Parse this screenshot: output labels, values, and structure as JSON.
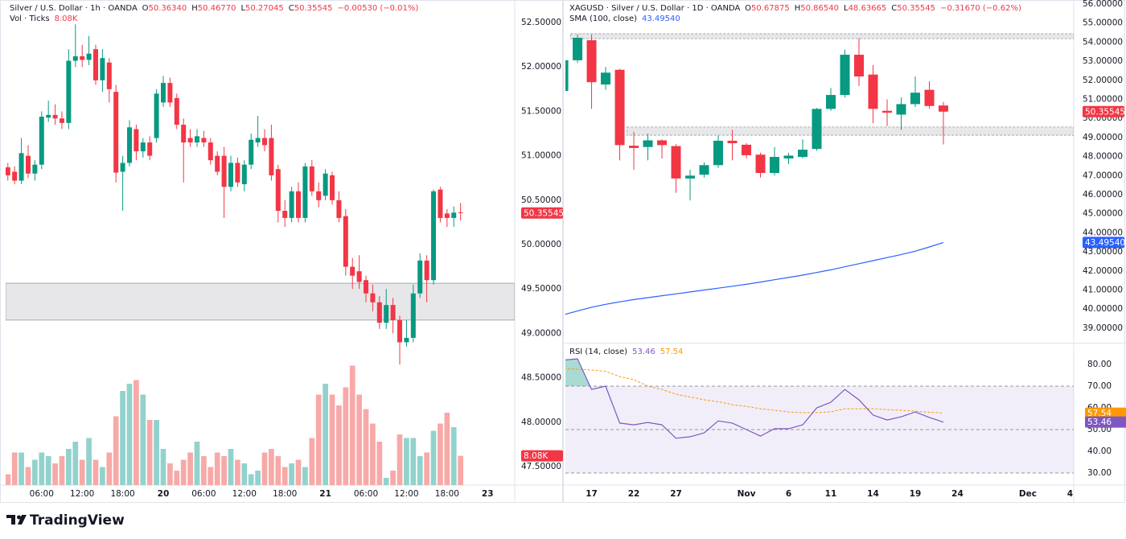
{
  "chart_data": [
    {
      "type": "candlestick",
      "header": {
        "symbol": "Silver / U.S. Dollar · 1h · OANDA",
        "fields": [
          {
            "key": "O",
            "value": "50.36340"
          },
          {
            "key": "H",
            "value": "50.46770"
          },
          {
            "key": "L",
            "value": "50.27045"
          },
          {
            "key": "C",
            "value": "50.35545"
          }
        ],
        "change": "−0.00530 (−0.01%)"
      },
      "up_color": "#089981",
      "down_color": "#f23645",
      "x": [
        -23,
        -22,
        -21,
        -20,
        -19,
        -18,
        -17,
        -16,
        -15,
        -14,
        -13,
        -12,
        -11,
        -10,
        -9,
        -8,
        -7,
        -6,
        -5,
        -4,
        -3,
        -2,
        -1,
        0,
        1,
        2,
        3,
        4,
        5,
        6,
        7,
        8,
        9,
        10,
        11,
        12,
        13,
        14,
        15,
        16,
        17,
        18,
        19,
        20,
        21,
        22,
        23,
        24,
        25,
        26,
        27,
        28,
        29,
        30,
        31,
        32,
        33,
        34,
        35,
        36,
        37,
        38,
        39,
        40,
        41,
        42,
        43,
        44
      ],
      "open": [
        50.87,
        50.82,
        50.72,
        51.0,
        50.8,
        50.9,
        51.43,
        51.46,
        51.42,
        51.37,
        52.07,
        52.12,
        52.08,
        52.2,
        51.85,
        52.05,
        51.72,
        50.82,
        50.92,
        51.3,
        51.05,
        51.15,
        51.2,
        51.6,
        51.82,
        51.65,
        51.35,
        51.2,
        51.15,
        51.2,
        51.15,
        51.0,
        51.0,
        50.65,
        50.92,
        50.68,
        50.9,
        51.15,
        51.2,
        51.2,
        50.85,
        50.38,
        50.3,
        50.6,
        50.3,
        50.88,
        50.6,
        50.55,
        50.78,
        50.5,
        50.32,
        49.75,
        49.7,
        49.6,
        49.45,
        49.35,
        49.12,
        49.32,
        49.15,
        48.9,
        48.95,
        49.45,
        49.82,
        49.6,
        50.62,
        50.35,
        50.3,
        50.3634
      ],
      "high": [
        50.92,
        50.88,
        51.2,
        51.12,
        50.95,
        51.5,
        51.62,
        51.58,
        51.5,
        52.2,
        52.48,
        52.25,
        52.35,
        52.25,
        52.2,
        52.1,
        51.8,
        51.0,
        51.4,
        51.35,
        51.2,
        51.22,
        51.75,
        51.9,
        51.88,
        51.7,
        51.42,
        51.3,
        51.3,
        51.28,
        51.2,
        51.05,
        51.1,
        51.0,
        50.98,
        50.95,
        51.25,
        51.45,
        51.3,
        51.35,
        50.9,
        50.5,
        50.65,
        50.7,
        50.92,
        50.95,
        50.7,
        50.85,
        50.82,
        50.6,
        50.4,
        49.85,
        49.88,
        49.65,
        49.55,
        49.42,
        49.5,
        49.4,
        49.2,
        49.15,
        49.55,
        49.9,
        49.88,
        50.62,
        50.65,
        50.4,
        50.43,
        50.4677
      ],
      "low": [
        50.72,
        50.68,
        50.68,
        50.75,
        50.72,
        50.85,
        51.38,
        51.35,
        51.3,
        51.3,
        52.0,
        52.0,
        52.02,
        51.8,
        51.72,
        51.6,
        50.7,
        50.38,
        50.88,
        50.95,
        50.98,
        50.95,
        51.15,
        51.55,
        51.55,
        51.3,
        50.7,
        51.1,
        51.1,
        51.1,
        50.9,
        50.78,
        50.3,
        50.6,
        50.65,
        50.6,
        50.85,
        51.1,
        51.05,
        50.72,
        50.25,
        50.2,
        50.25,
        50.25,
        50.25,
        50.55,
        50.42,
        50.5,
        50.45,
        50.25,
        49.65,
        49.5,
        49.5,
        49.35,
        49.25,
        49.05,
        49.05,
        49.0,
        48.65,
        48.85,
        48.9,
        49.4,
        49.35,
        49.55,
        50.25,
        50.2,
        50.2,
        50.27045
      ],
      "close": [
        50.78,
        50.72,
        51.03,
        50.8,
        50.9,
        51.44,
        51.46,
        51.42,
        51.37,
        52.07,
        52.12,
        52.08,
        52.15,
        51.85,
        52.1,
        51.75,
        50.81,
        50.92,
        51.32,
        51.05,
        51.15,
        51.0,
        51.7,
        51.82,
        51.6,
        51.35,
        51.15,
        51.15,
        51.22,
        51.15,
        50.95,
        50.82,
        50.65,
        50.92,
        50.7,
        50.9,
        51.18,
        51.2,
        51.12,
        50.78,
        50.38,
        50.3,
        50.6,
        50.3,
        50.88,
        50.6,
        50.5,
        50.8,
        50.5,
        50.3,
        49.75,
        49.65,
        49.58,
        49.45,
        49.35,
        49.12,
        49.32,
        49.15,
        48.9,
        48.95,
        49.45,
        49.82,
        49.6,
        50.6,
        50.3,
        50.3,
        50.36,
        50.35545
      ],
      "last_label": "50.35545",
      "xlim": [
        -23.33,
        52.02
      ],
      "xticks": [
        {
          "value": -18,
          "label": "06:00"
        },
        {
          "value": -12,
          "label": "12:00"
        },
        {
          "value": -6,
          "label": "18:00"
        },
        {
          "value": 0,
          "label": "20"
        },
        {
          "value": 6,
          "label": "06:00"
        },
        {
          "value": 12,
          "label": "12:00"
        },
        {
          "value": 18,
          "label": "18:00"
        },
        {
          "value": 24,
          "label": "21"
        },
        {
          "value": 30,
          "label": "06:00"
        },
        {
          "value": 36,
          "label": "12:00"
        },
        {
          "value": 42,
          "label": "18:00"
        },
        {
          "value": 48,
          "label": "23"
        }
      ],
      "ylim": [
        47.292,
        52.754
      ],
      "yticks": [
        {
          "value": 47.5,
          "label": "47.50000"
        },
        {
          "value": 48,
          "label": "48.00000"
        },
        {
          "value": 48.5,
          "label": "48.50000"
        },
        {
          "value": 49,
          "label": "49.00000"
        },
        {
          "value": 49.5,
          "label": "49.50000"
        },
        {
          "value": 50,
          "label": "50.00000"
        },
        {
          "value": 50.5,
          "label": "50.50000"
        },
        {
          "value": 51,
          "label": "51.00000"
        },
        {
          "value": 51.5,
          "label": "51.50000"
        },
        {
          "value": 52,
          "label": "52.00000"
        },
        {
          "value": 52.5,
          "label": "52.50000"
        }
      ],
      "zones": [
        {
          "top": 49.565,
          "bottom": 49.15
        }
      ],
      "volume": {
        "title": "Vol · Ticks",
        "last_label": "8.08K",
        "ylim": [
          0,
          40
        ],
        "up_color": "#92d2cc",
        "down_color": "#f7a9a7",
        "values": [
          3,
          9,
          9,
          5,
          7,
          9,
          8,
          6,
          8,
          10,
          12,
          7,
          13,
          7,
          5,
          9,
          19,
          26,
          28,
          29,
          25,
          18,
          18,
          10,
          6,
          4,
          7,
          9,
          12,
          8,
          5,
          9,
          8,
          10,
          7,
          6,
          3,
          4,
          9,
          10,
          8,
          5,
          6,
          7,
          5,
          13,
          25,
          28,
          25,
          22,
          27,
          33,
          25,
          21,
          17,
          12,
          2,
          4,
          14,
          13,
          13,
          8,
          9,
          15,
          17,
          20,
          16,
          8.08
        ]
      }
    },
    {
      "type": "candlestick",
      "header": {
        "symbol": "XAGUSD · Silver / U.S. Dollar · 1D · OANDA",
        "fields": [
          {
            "key": "O",
            "value": "50.67875"
          },
          {
            "key": "H",
            "value": "50.86540"
          },
          {
            "key": "L",
            "value": "48.63665"
          },
          {
            "key": "C",
            "value": "50.35545"
          }
        ],
        "change": "−0.31670 (−0.62%)"
      },
      "up_color": "#089981",
      "down_color": "#f23645",
      "x": [
        -2,
        -1,
        0,
        1,
        2,
        3,
        4,
        5,
        6,
        7,
        8,
        9,
        10,
        11,
        12,
        13,
        14,
        15,
        16,
        17,
        18,
        19,
        20,
        21,
        22,
        23,
        24,
        25
      ],
      "open": [
        51.44,
        53.05,
        54.1,
        51.78,
        52.55,
        48.57,
        48.5,
        48.85,
        48.55,
        46.85,
        47.05,
        47.55,
        48.83,
        48.62,
        48.1,
        47.14,
        47.9,
        47.98,
        48.4,
        50.5,
        51.23,
        53.34,
        52.3,
        50.4,
        50.2,
        50.75,
        51.5,
        50.67875
      ],
      "high": [
        53.2,
        54.4,
        54.4,
        52.7,
        52.6,
        49.3,
        49.2,
        48.9,
        48.65,
        47.3,
        47.7,
        49.1,
        49.4,
        48.7,
        48.2,
        48.5,
        48.2,
        48.9,
        50.55,
        51.6,
        53.6,
        54.2,
        52.8,
        51.0,
        51.1,
        52.2,
        51.95,
        50.8654
      ],
      "low": [
        51.3,
        52.9,
        50.5,
        51.5,
        47.8,
        47.3,
        47.8,
        47.9,
        46.1,
        45.7,
        46.9,
        47.4,
        47.8,
        47.9,
        46.9,
        47.0,
        47.6,
        47.9,
        48.3,
        50.4,
        51.1,
        51.7,
        49.75,
        49.6,
        49.4,
        50.6,
        50.5,
        48.63665
      ],
      "close": [
        53.05,
        54.23,
        51.9,
        52.4,
        48.6,
        48.45,
        48.85,
        48.6,
        46.85,
        47.0,
        47.55,
        48.83,
        48.7,
        48.07,
        47.14,
        47.98,
        48.05,
        48.36,
        50.5,
        51.23,
        53.34,
        52.2,
        50.5,
        50.3,
        50.75,
        51.35,
        50.65,
        50.35545
      ],
      "last_label": "50.35545",
      "xlim": [
        -1.86,
        34.26
      ],
      "xticks": [
        {
          "value": 0,
          "label": "17"
        },
        {
          "value": 3,
          "label": "22"
        },
        {
          "value": 6,
          "label": "27"
        },
        {
          "value": 11,
          "label": "Nov"
        },
        {
          "value": 14,
          "label": "6"
        },
        {
          "value": 17,
          "label": "11"
        },
        {
          "value": 20,
          "label": "14"
        },
        {
          "value": 23,
          "label": "19"
        },
        {
          "value": 26,
          "label": "24"
        },
        {
          "value": 31,
          "label": "Dec"
        },
        {
          "value": 34,
          "label": "4"
        }
      ],
      "ylim": [
        38.28,
        56.21
      ],
      "yticks": [
        {
          "value": 39,
          "label": "39.00000"
        },
        {
          "value": 40,
          "label": "40.00000"
        },
        {
          "value": 41,
          "label": "41.00000"
        },
        {
          "value": 42,
          "label": "42.00000"
        },
        {
          "value": 43,
          "label": "43.00000"
        },
        {
          "value": 44,
          "label": "44.00000"
        },
        {
          "value": 45,
          "label": "45.00000"
        },
        {
          "value": 46,
          "label": "46.00000"
        },
        {
          "value": 47,
          "label": "47.00000"
        },
        {
          "value": 48,
          "label": "48.00000"
        },
        {
          "value": 49,
          "label": "49.00000"
        },
        {
          "value": 50,
          "label": "50.00000"
        },
        {
          "value": 51,
          "label": "51.00000"
        },
        {
          "value": 52,
          "label": "52.00000"
        },
        {
          "value": 53,
          "label": "53.00000"
        },
        {
          "value": 54,
          "label": "54.00000"
        },
        {
          "value": 55,
          "label": "55.00000"
        },
        {
          "value": 56,
          "label": "56.00000"
        }
      ],
      "zones": [
        {
          "start": -1,
          "top": 54.44,
          "bottom": 54.18
        },
        {
          "start": 3,
          "top": 49.55,
          "bottom": 49.12
        }
      ],
      "sma": {
        "title": "SMA (100, close)",
        "last_label": "43.49540",
        "color": "#2962ff",
        "values": [
          39.7,
          39.9,
          40.1,
          40.25,
          40.38,
          40.5,
          40.6,
          40.7,
          40.8,
          40.9,
          41.0,
          41.1,
          41.2,
          41.3,
          41.42,
          41.54,
          41.66,
          41.78,
          41.92,
          42.06,
          42.22,
          42.38,
          42.54,
          42.7,
          42.86,
          43.04,
          43.26,
          43.4954
        ]
      },
      "rsi": {
        "title": "RSI (14, close)",
        "last_label": "53.46",
        "color": "#7e57c2",
        "values": [
          82.0,
          82.6,
          68.5,
          70.0,
          53.0,
          52.2,
          53.3,
          52.2,
          46.0,
          46.7,
          48.5,
          54.0,
          53.0,
          50.0,
          47.0,
          50.4,
          50.4,
          52.2,
          60.0,
          62.6,
          68.5,
          63.7,
          56.7,
          54.4,
          55.9,
          58.1,
          55.6,
          53.46
        ],
        "ma_last_label": "57.54",
        "ma_color": "#ff9800",
        "ma_values": [
          78.1,
          77.8,
          77.4,
          76.8,
          74.4,
          73.0,
          70.0,
          68.5,
          66.3,
          65.0,
          63.7,
          62.8,
          61.5,
          60.7,
          59.6,
          58.9,
          58.1,
          57.8,
          57.8,
          58.2,
          59.6,
          59.6,
          59.6,
          59.2,
          58.9,
          58.5,
          58.0,
          57.54
        ],
        "ylim": [
          25.56,
          89.26
        ],
        "yticks": [
          {
            "value": 30,
            "label": "30.00"
          },
          {
            "value": 40,
            "label": "40.00"
          },
          {
            "value": 50,
            "label": "50.00"
          },
          {
            "value": 60,
            "label": "60.00"
          },
          {
            "value": 70,
            "label": "70.00"
          },
          {
            "value": 80,
            "label": "80.00"
          }
        ],
        "band": [
          30,
          70
        ],
        "levels": [
          70,
          50,
          30
        ]
      }
    }
  ],
  "footer": {
    "brand": "TradingView"
  }
}
